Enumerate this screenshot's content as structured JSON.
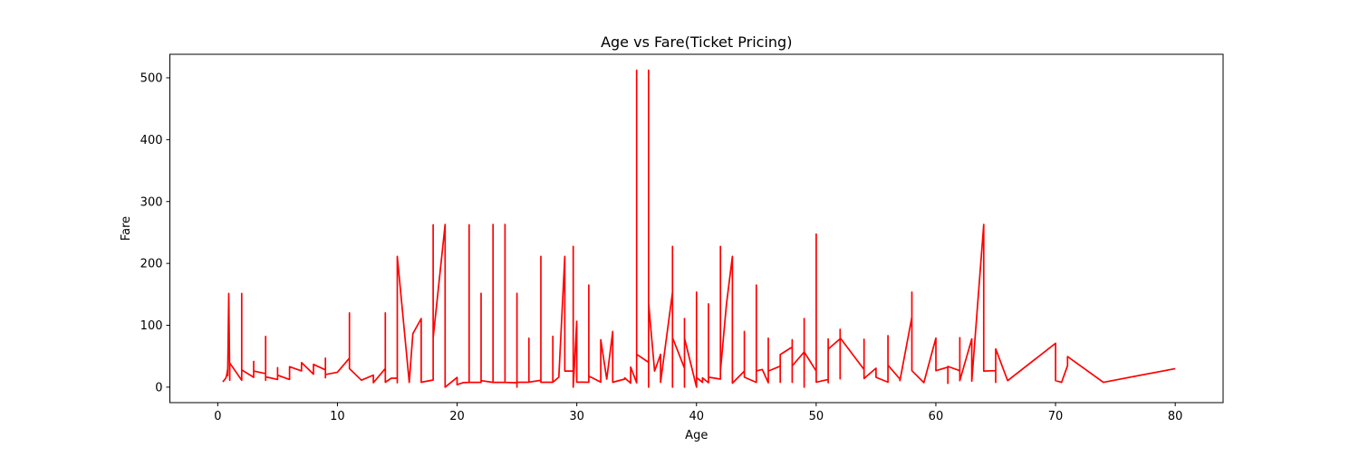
{
  "chart_data": {
    "type": "line",
    "title": "Age vs Fare(Ticket Pricing)",
    "xlabel": "Age",
    "ylabel": "Fare",
    "xlim": [
      -4,
      84
    ],
    "ylim": [
      -25,
      538
    ],
    "x_ticks": [
      0,
      10,
      20,
      30,
      40,
      50,
      60,
      70,
      80
    ],
    "y_ticks": [
      0,
      100,
      200,
      300,
      400,
      500
    ],
    "grid": false,
    "legend": null,
    "line_color": "#ff0000",
    "series": [
      {
        "points": [
          [
            0.42,
            8.5
          ],
          [
            0.67,
            14.5
          ],
          [
            0.75,
            19.3
          ],
          [
            0.83,
            29
          ],
          [
            0.83,
            18.8
          ],
          [
            0.92,
            151.5
          ],
          [
            1,
            11.1
          ],
          [
            1,
            39
          ],
          [
            2,
            11.1
          ],
          [
            2,
            151.5
          ],
          [
            2,
            27.9
          ],
          [
            3,
            15.9
          ],
          [
            3,
            41.6
          ],
          [
            3,
            26
          ],
          [
            4,
            22
          ],
          [
            4,
            11.1
          ],
          [
            4,
            81.9
          ],
          [
            4,
            16.7
          ],
          [
            5,
            12.5
          ],
          [
            5,
            31.4
          ],
          [
            5,
            19.3
          ],
          [
            6,
            12.5
          ],
          [
            6,
            33
          ],
          [
            7,
            26.3
          ],
          [
            7,
            39.7
          ],
          [
            8,
            21.1
          ],
          [
            8,
            36.8
          ],
          [
            9,
            27.9
          ],
          [
            9,
            15.2
          ],
          [
            9,
            46.9
          ],
          [
            9,
            20.5
          ],
          [
            10,
            24.2
          ],
          [
            11,
            46.9
          ],
          [
            11,
            120
          ],
          [
            11,
            30
          ],
          [
            12,
            11.2
          ],
          [
            13,
            19.5
          ],
          [
            13,
            7.2
          ],
          [
            14,
            30.1
          ],
          [
            14,
            120
          ],
          [
            14,
            7.9
          ],
          [
            14.5,
            14.5
          ],
          [
            15,
            14.5
          ],
          [
            15,
            7.2
          ],
          [
            15,
            211.3
          ],
          [
            16,
            7.7
          ],
          [
            16.3,
            86.5
          ],
          [
            17,
            110.9
          ],
          [
            17,
            7.9
          ],
          [
            18,
            11.5
          ],
          [
            18,
            262.4
          ],
          [
            18,
            79.7
          ],
          [
            19,
            263
          ],
          [
            19,
            0
          ],
          [
            19.5,
            7.8
          ],
          [
            20,
            15.7
          ],
          [
            20,
            4
          ],
          [
            20.5,
            7.3
          ],
          [
            21,
            7.8
          ],
          [
            21,
            262.4
          ],
          [
            21,
            7.9
          ],
          [
            22,
            7.8
          ],
          [
            22,
            151.6
          ],
          [
            22,
            10.5
          ],
          [
            23,
            7.8
          ],
          [
            23,
            263
          ],
          [
            23,
            7.8
          ],
          [
            24,
            7.8
          ],
          [
            24,
            263
          ],
          [
            24,
            263
          ],
          [
            24,
            7.8
          ],
          [
            25,
            7.2
          ],
          [
            25,
            151.6
          ],
          [
            25,
            0
          ],
          [
            25,
            7.9
          ],
          [
            26,
            7.9
          ],
          [
            26,
            78.9
          ],
          [
            26,
            8
          ],
          [
            27,
            11.1
          ],
          [
            27,
            211.3
          ],
          [
            27,
            7.9
          ],
          [
            28,
            8.1
          ],
          [
            28,
            82.2
          ],
          [
            28,
            7.9
          ],
          [
            28.5,
            16.1
          ],
          [
            29,
            211.3
          ],
          [
            29,
            26
          ],
          [
            29.7,
            26
          ],
          [
            29.7,
            227.5
          ],
          [
            29.7,
            0
          ],
          [
            30,
            106.4
          ],
          [
            30,
            13
          ],
          [
            30,
            8
          ],
          [
            30.5,
            8
          ],
          [
            31,
            7.9
          ],
          [
            31,
            164.9
          ],
          [
            31,
            18
          ],
          [
            32,
            8
          ],
          [
            32,
            76.7
          ],
          [
            32.5,
            13
          ],
          [
            33,
            90
          ],
          [
            33,
            7.9
          ],
          [
            34,
            13
          ],
          [
            34,
            15
          ],
          [
            34.5,
            6.4
          ],
          [
            34.5,
            32.5
          ],
          [
            35,
            7
          ],
          [
            35,
            512.3
          ],
          [
            35,
            512.3
          ],
          [
            35,
            53.1
          ],
          [
            36,
            40.1
          ],
          [
            36,
            512.3
          ],
          [
            36,
            0
          ],
          [
            36,
            135.6
          ],
          [
            36.5,
            26
          ],
          [
            37,
            53.1
          ],
          [
            37,
            7.9
          ],
          [
            38,
            153.5
          ],
          [
            38,
            227.5
          ],
          [
            38,
            0
          ],
          [
            38,
            80
          ],
          [
            39,
            30.7
          ],
          [
            39,
            110.9
          ],
          [
            39,
            0
          ],
          [
            39,
            79.2
          ],
          [
            40,
            0
          ],
          [
            40,
            153.5
          ],
          [
            40,
            15.5
          ],
          [
            40.5,
            7.8
          ],
          [
            40.5,
            15.1
          ],
          [
            41,
            7.1
          ],
          [
            41,
            134.5
          ],
          [
            41,
            16.1
          ],
          [
            42,
            13
          ],
          [
            42,
            227.5
          ],
          [
            42,
            26.5
          ],
          [
            42.5,
            133.6
          ],
          [
            43,
            211.5
          ],
          [
            43,
            6.5
          ],
          [
            44,
            26
          ],
          [
            44,
            90
          ],
          [
            44,
            16.1
          ],
          [
            45,
            7.8
          ],
          [
            45,
            164.9
          ],
          [
            45,
            26.3
          ],
          [
            45.5,
            28.5
          ],
          [
            46,
            7.2
          ],
          [
            46,
            79.2
          ],
          [
            46,
            26
          ],
          [
            47,
            34
          ],
          [
            47,
            7.9
          ],
          [
            47,
            52.6
          ],
          [
            48,
            65
          ],
          [
            48,
            76.7
          ],
          [
            48,
            7.9
          ],
          [
            48,
            34.4
          ],
          [
            49,
            56.9
          ],
          [
            49,
            110.9
          ],
          [
            49,
            0
          ],
          [
            49,
            56.9
          ],
          [
            50,
            26
          ],
          [
            50,
            247.5
          ],
          [
            50,
            8
          ],
          [
            51,
            12.5
          ],
          [
            51,
            7.1
          ],
          [
            51,
            77.9
          ],
          [
            51,
            61.4
          ],
          [
            52,
            78.3
          ],
          [
            52,
            93.5
          ],
          [
            52,
            13.5
          ],
          [
            52,
            79.7
          ],
          [
            54,
            28.5
          ],
          [
            54,
            77.3
          ],
          [
            54,
            14
          ],
          [
            55,
            30.5
          ],
          [
            55,
            16
          ],
          [
            56,
            8
          ],
          [
            56,
            30.7
          ],
          [
            56,
            83.2
          ],
          [
            56,
            35.5
          ],
          [
            57,
            13
          ],
          [
            57,
            10.5
          ],
          [
            58,
            113.3
          ],
          [
            58,
            153.5
          ],
          [
            58,
            26.6
          ],
          [
            59,
            7.3
          ],
          [
            60,
            79.2
          ],
          [
            60,
            75.2
          ],
          [
            60,
            26.6
          ],
          [
            61,
            32.3
          ],
          [
            61,
            6.2
          ],
          [
            61,
            33.5
          ],
          [
            62,
            26.6
          ],
          [
            62,
            80
          ],
          [
            62,
            10.5
          ],
          [
            63,
            77.9
          ],
          [
            63,
            9.6
          ],
          [
            64,
            263
          ],
          [
            64,
            26
          ],
          [
            65,
            26.6
          ],
          [
            65,
            7.8
          ],
          [
            65,
            61.9
          ],
          [
            66,
            10.5
          ],
          [
            70,
            71
          ],
          [
            70,
            10.5
          ],
          [
            70.5,
            7.8
          ],
          [
            71,
            34.7
          ],
          [
            71,
            49.5
          ],
          [
            74,
            7.8
          ],
          [
            80,
            30
          ]
        ]
      }
    ]
  }
}
